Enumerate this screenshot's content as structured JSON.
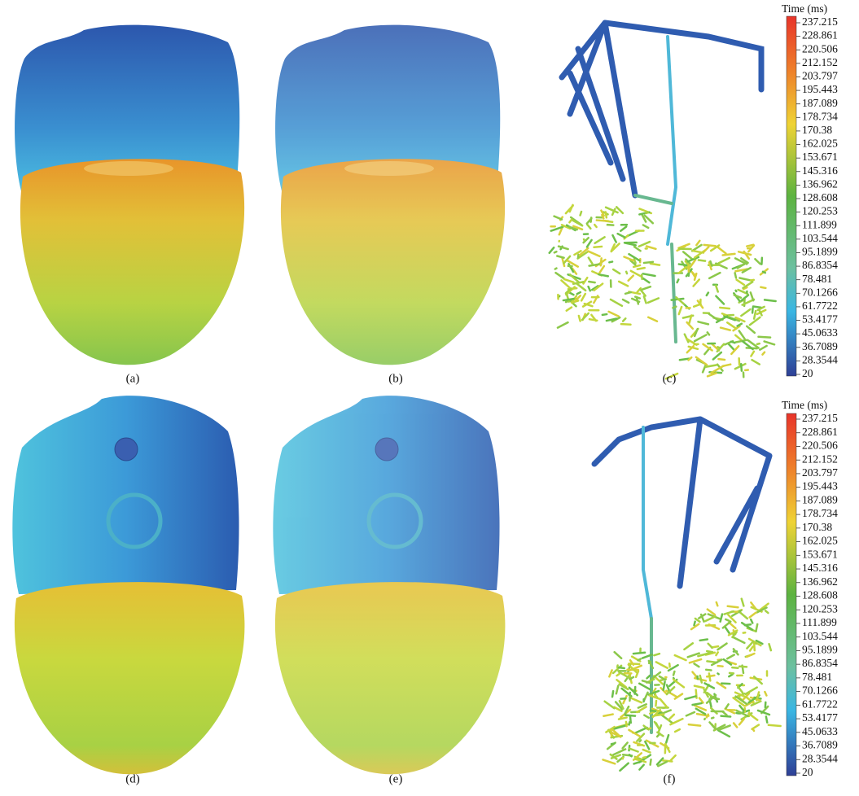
{
  "panels": [
    "(a)",
    "(b)",
    "(c)",
    "(d)",
    "(e)",
    "(f)"
  ],
  "legends": [
    {
      "title": "Time (ms)",
      "labels": [
        "237.215",
        "228.861",
        "220.506",
        "212.152",
        "203.797",
        "195.443",
        "187.089",
        "178.734",
        "170.38",
        "162.025",
        "153.671",
        "145.316",
        "136.962",
        "128.608",
        "120.253",
        "111.899",
        "103.544",
        "95.1899",
        "86.8354",
        "78.481",
        "70.1266",
        "61.7722",
        "53.4177",
        "45.0633",
        "36.7089",
        "28.3544",
        "20"
      ]
    },
    {
      "title": "Time (ms)",
      "labels": [
        "237.215",
        "228.861",
        "220.506",
        "212.152",
        "203.797",
        "195.443",
        "187.089",
        "178.734",
        "170.38",
        "162.025",
        "153.671",
        "145.316",
        "136.962",
        "128.608",
        "120.253",
        "111.899",
        "103.544",
        "95.1899",
        "86.8354",
        "78.481",
        "70.1266",
        "61.7722",
        "53.4177",
        "45.0633",
        "36.7089",
        "28.3544",
        "20"
      ]
    }
  ]
}
